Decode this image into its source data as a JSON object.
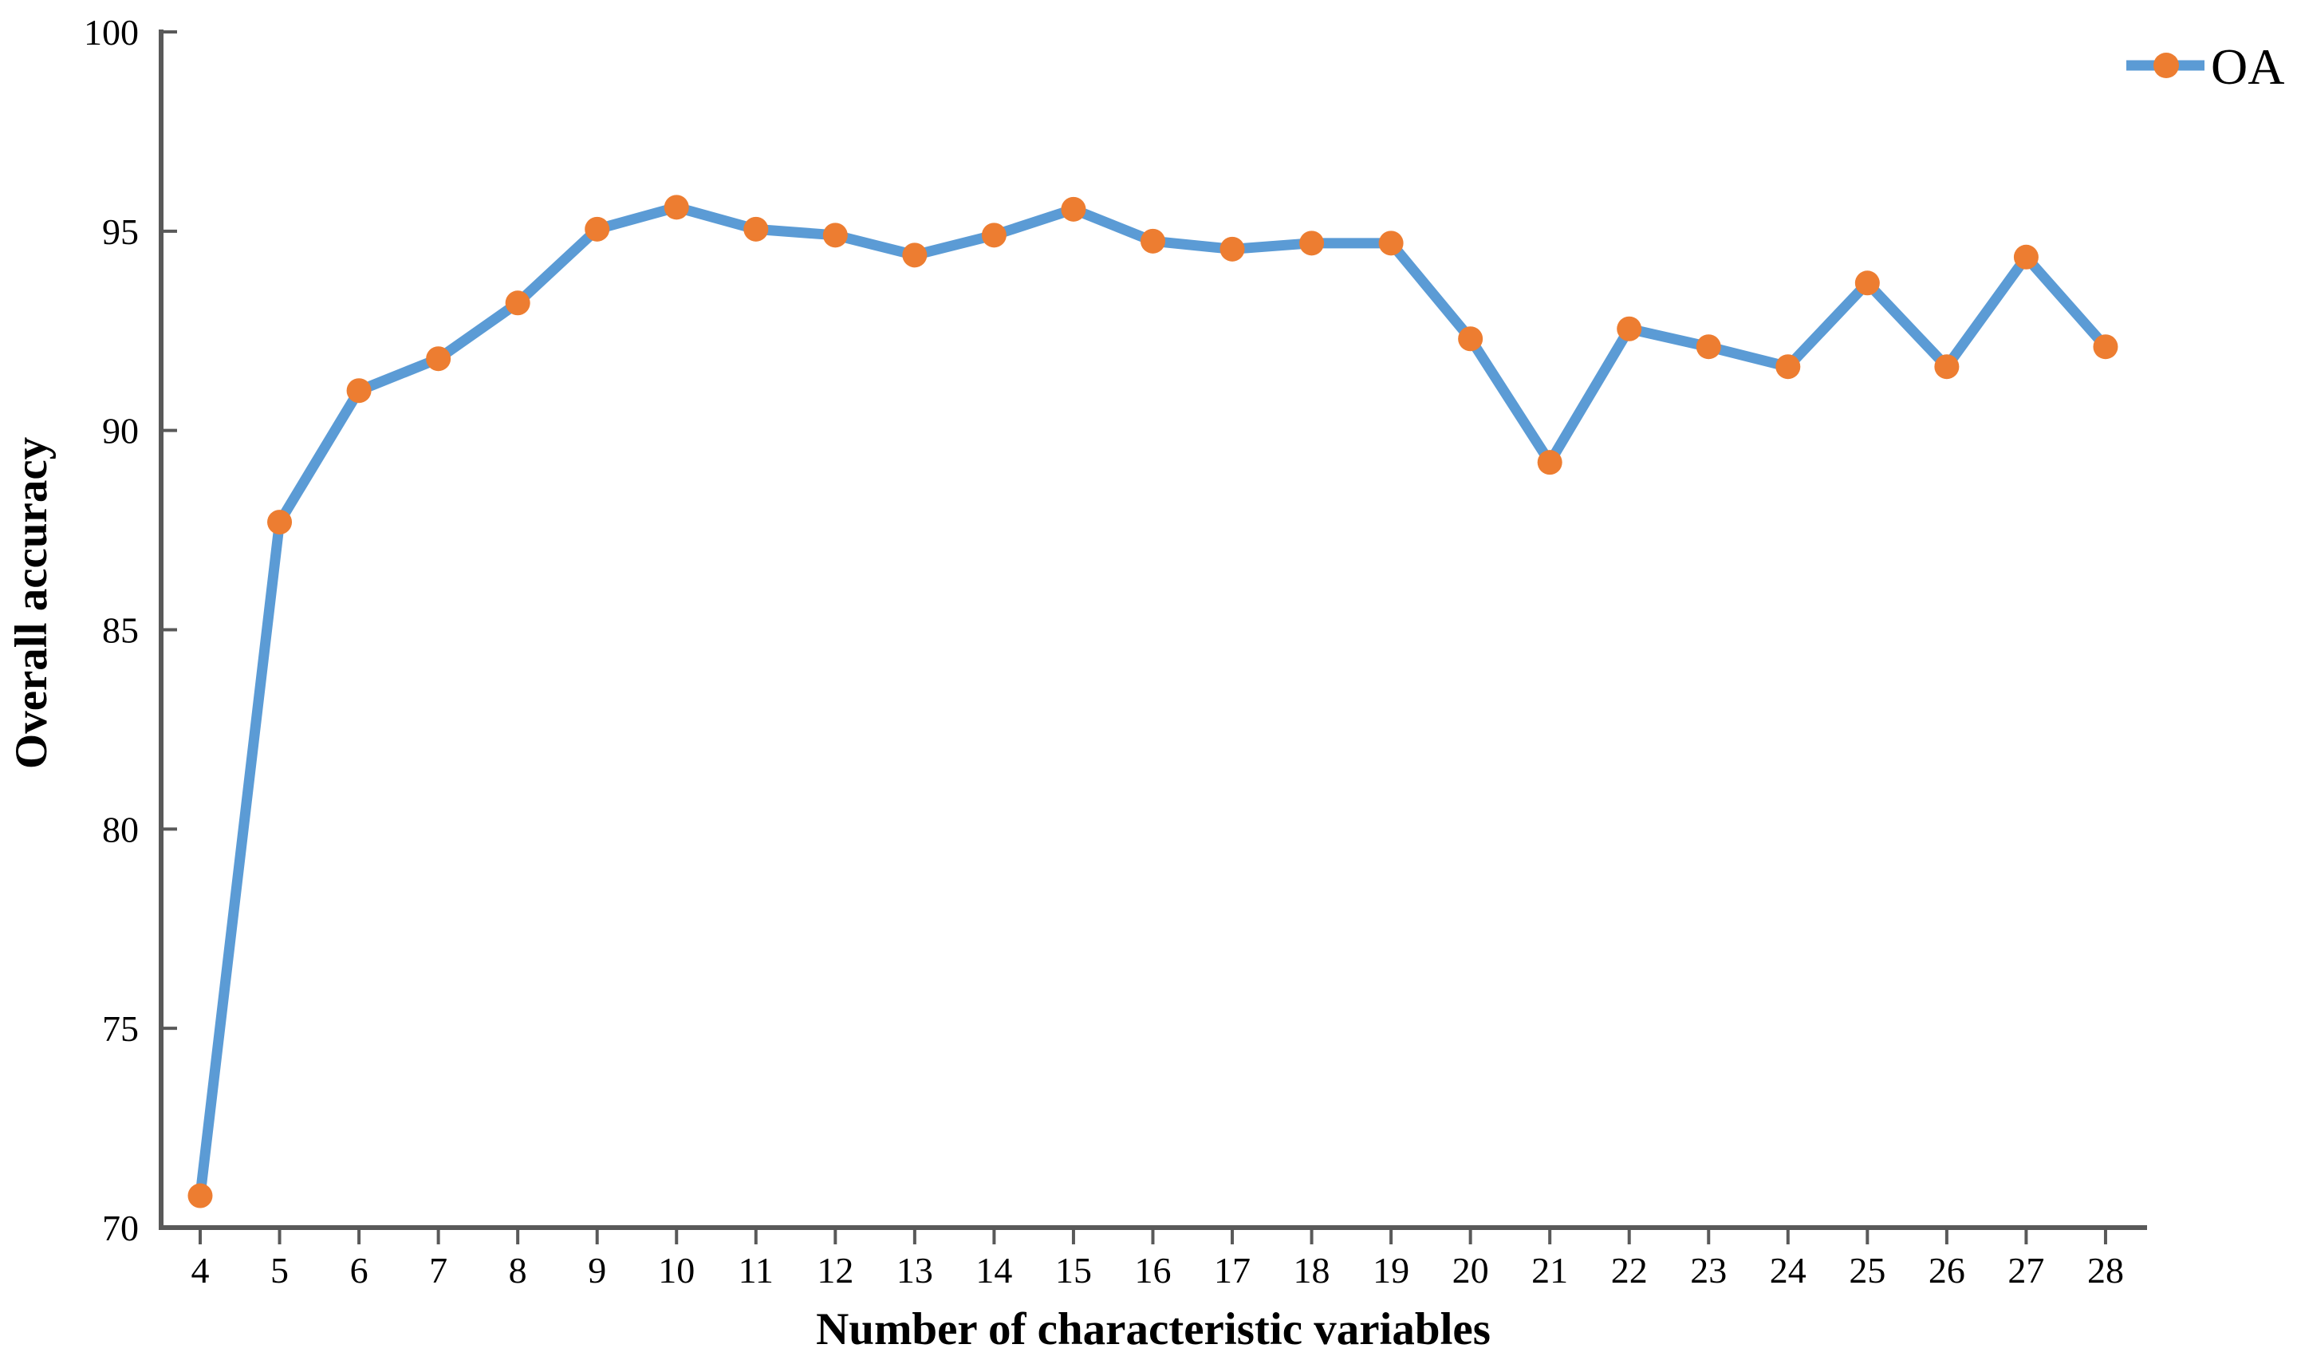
{
  "chart_data": {
    "type": "line",
    "title": "",
    "xlabel": "Number of characteristic variables",
    "ylabel": "Overall accuracy",
    "x": [
      4,
      5,
      6,
      7,
      8,
      9,
      10,
      11,
      12,
      13,
      14,
      15,
      16,
      17,
      18,
      19,
      20,
      21,
      22,
      23,
      24,
      25,
      26,
      27,
      28
    ],
    "series": [
      {
        "name": "OA",
        "values": [
          70.8,
          87.7,
          91.0,
          91.8,
          93.2,
          95.05,
          95.6,
          95.05,
          94.9,
          94.4,
          94.9,
          95.55,
          94.75,
          94.55,
          94.7,
          94.7,
          92.3,
          89.2,
          92.55,
          92.1,
          91.6,
          93.7,
          91.6,
          94.35,
          92.1
        ]
      }
    ],
    "ylim": [
      70,
      100
    ],
    "yticks": [
      70,
      75,
      80,
      85,
      90,
      95,
      100
    ],
    "grid": false,
    "legend_position": "top-right"
  },
  "colors": {
    "line": "#5B9BD5",
    "marker": "#ED7D31",
    "axis": "#595959",
    "text": "#000000"
  }
}
